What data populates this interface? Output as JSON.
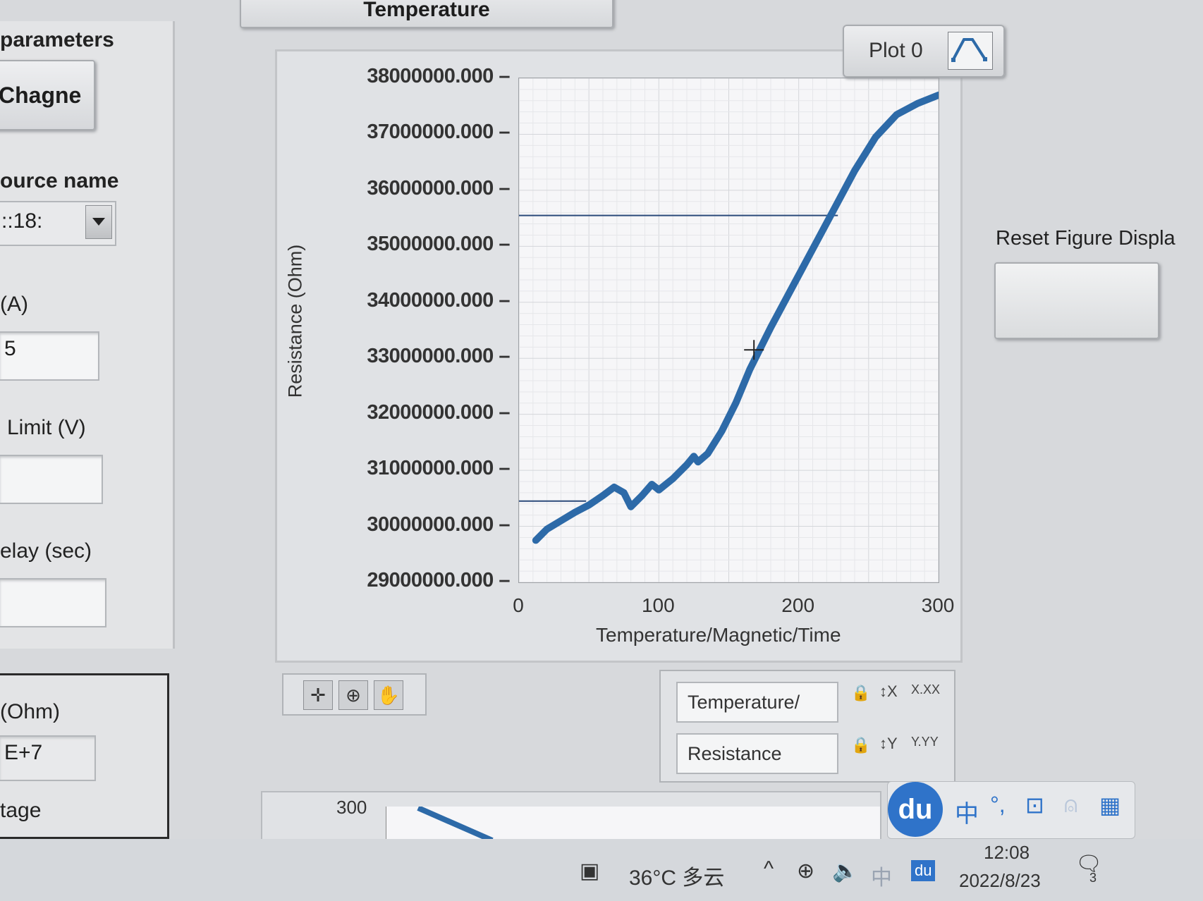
{
  "top_button": {
    "label": "Temperature"
  },
  "left_panel": {
    "section_title": "parameters",
    "change_button": "Chagne",
    "source_name_label": "ource name",
    "source_name_value": "::18:",
    "current_label": "(A)",
    "current_value": "5",
    "limit_label": "Limit (V)",
    "limit_value": "",
    "delay_label": "elay (sec)",
    "delay_value": "",
    "resistance_label": "(Ohm)",
    "resistance_value": "E+7",
    "voltage_label": "tage"
  },
  "graph": {
    "legend_name": "Plot 0",
    "y_axis_title": "Resistance (Ohm)",
    "x_axis_title": "Temperature/Magnetic/Time",
    "y_ticks": [
      "38000000.000",
      "37000000.000",
      "36000000.000",
      "35000000.000",
      "34000000.000",
      "33000000.000",
      "32000000.000",
      "31000000.000",
      "30000000.000",
      "29000000.000"
    ],
    "x_ticks": [
      "0",
      "100",
      "200",
      "300"
    ],
    "scale_x_name": "Temperature/",
    "scale_y_name": "Resistance",
    "x_format_icon": "X.XX",
    "y_format_icon": "Y.YY",
    "lower_graph_tick": "300"
  },
  "chart_data": {
    "type": "line",
    "xlim": [
      0,
      300
    ],
    "ylim": [
      29000000,
      38000000
    ],
    "xlabel": "Temperature/Magnetic/Time",
    "ylabel": "Resistance (Ohm)",
    "grid": true,
    "line_color": "#2d6aa8",
    "series": [
      {
        "x": [
          12,
          20,
          30,
          40,
          50,
          60,
          68,
          75,
          80,
          88,
          95,
          100,
          110,
          120,
          125,
          128,
          135,
          145,
          155,
          165,
          180,
          195,
          210,
          225,
          240,
          255,
          270,
          285,
          300
        ],
        "y": [
          29750000,
          29950000,
          30100000,
          30250000,
          30380000,
          30550000,
          30700000,
          30600000,
          30350000,
          30550000,
          30750000,
          30650000,
          30850000,
          31100000,
          31250000,
          31150000,
          31300000,
          31700000,
          32200000,
          32800000,
          33550000,
          34250000,
          34950000,
          35650000,
          36350000,
          36950000,
          37350000,
          37550000,
          37700000
        ]
      }
    ],
    "cursor_lines": {
      "y_upper": 35550000,
      "y_lower": 30450000
    }
  },
  "reset_button": {
    "label": "Reset Figure Displa"
  },
  "taskbar": {
    "weather": "36°C 多云",
    "ime_char": "中",
    "du_label": "du",
    "time": "12:08",
    "date": "2022/8/23",
    "notification_count": "3"
  }
}
